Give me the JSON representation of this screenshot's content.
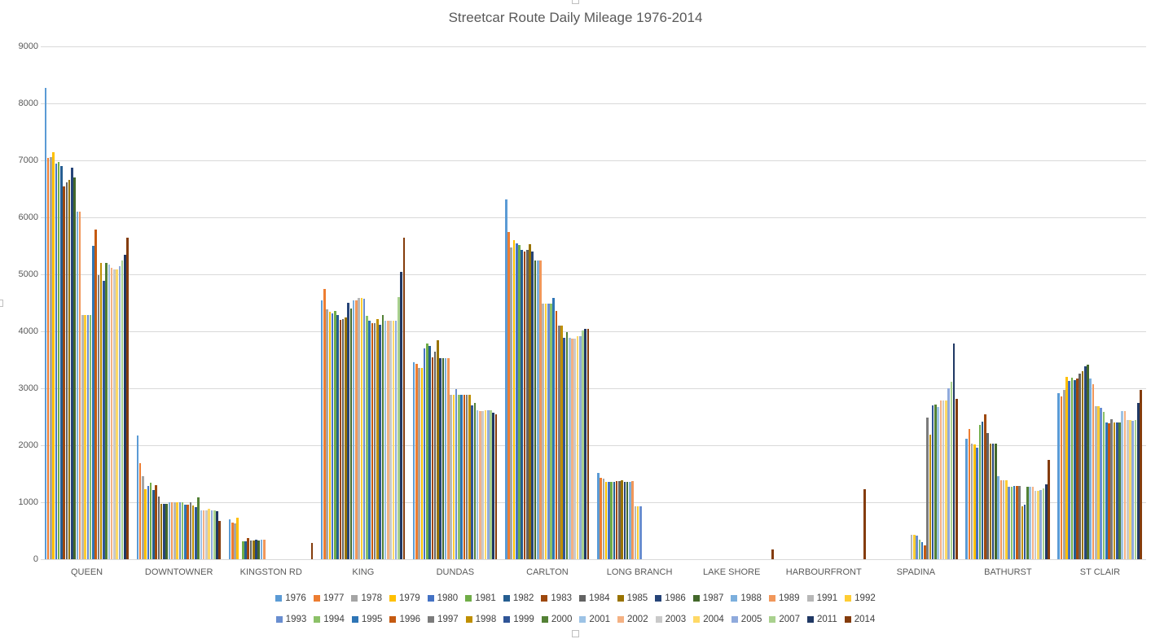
{
  "chart_data": {
    "type": "bar",
    "title": "Streetcar Route Daily Mileage 1976-2014",
    "categories": [
      "QUEEN",
      "DOWNTOWNER",
      "KINGSTON RD",
      "KING",
      "DUNDAS",
      "CARLTON",
      "LONG BRANCH",
      "LAKE SHORE",
      "HARBOURFRONT",
      "SPADINA",
      "BATHURST",
      "ST CLAIR"
    ],
    "ylabel": "",
    "xlabel": "",
    "ylim": [
      0,
      9000
    ],
    "y_axis": {
      "min": 0,
      "max": 9000,
      "step": 1000,
      "ticks": [
        0,
        1000,
        2000,
        3000,
        4000,
        5000,
        6000,
        7000,
        8000,
        9000
      ]
    },
    "grid": "horizontal",
    "legend": {
      "position": "bottom",
      "rows": 2
    },
    "series": [
      {
        "name": "1976",
        "color": "#5B9BD5",
        "values": [
          8270,
          2170,
          695,
          4550,
          3460,
          6320,
          1520,
          0,
          0,
          0,
          2120,
          2920
        ]
      },
      {
        "name": "1977",
        "color": "#ED7D31",
        "values": [
          7050,
          1680,
          650,
          4740,
          3430,
          5750,
          1430,
          0,
          0,
          0,
          2290,
          2860
        ]
      },
      {
        "name": "1978",
        "color": "#A5A5A5",
        "values": [
          7060,
          1460,
          633,
          4390,
          3360,
          5470,
          1410,
          0,
          0,
          0,
          2030,
          2970
        ]
      },
      {
        "name": "1979",
        "color": "#FFC000",
        "values": [
          7150,
          1230,
          729,
          4350,
          3360,
          5600,
          1360,
          0,
          0,
          0,
          2010,
          3205
        ]
      },
      {
        "name": "1980",
        "color": "#4472C4",
        "values": [
          6940,
          1280,
          0,
          4320,
          3695,
          5550,
          1360,
          0,
          0,
          0,
          1960,
          3125
        ]
      },
      {
        "name": "1981",
        "color": "#70AD47",
        "values": [
          6970,
          1350,
          315,
          4360,
          3790,
          5520,
          1360,
          0,
          0,
          0,
          2360,
          3185
        ]
      },
      {
        "name": "1982",
        "color": "#255E91",
        "values": [
          6900,
          1220,
          315,
          4290,
          3740,
          5430,
          1360,
          0,
          0,
          0,
          2420,
          3150
        ]
      },
      {
        "name": "1983",
        "color": "#9E480E",
        "values": [
          6550,
          1300,
          376,
          4200,
          3550,
          5400,
          1370,
          0,
          0,
          0,
          2540,
          3170
        ]
      },
      {
        "name": "1984",
        "color": "#636363",
        "values": [
          6620,
          1100,
          330,
          4220,
          3650,
          5430,
          1370,
          0,
          0,
          0,
          2220,
          3265
        ]
      },
      {
        "name": "1985",
        "color": "#997300",
        "values": [
          6660,
          975,
          335,
          4250,
          3840,
          5530,
          1380,
          0,
          0,
          0,
          2030,
          3300
        ]
      },
      {
        "name": "1986",
        "color": "#264478",
        "values": [
          6870,
          975,
          340,
          4500,
          3530,
          5400,
          1365,
          0,
          0,
          0,
          2030,
          3385
        ]
      },
      {
        "name": "1987",
        "color": "#43682B",
        "values": [
          6700,
          975,
          335,
          4400,
          3530,
          5250,
          1360,
          0,
          0,
          0,
          2030,
          3410
        ]
      },
      {
        "name": "1988",
        "color": "#7CAFDD",
        "values": [
          6100,
          995,
          345,
          4550,
          3530,
          5250,
          1365,
          0,
          0,
          0,
          1460,
          3170
        ]
      },
      {
        "name": "1989",
        "color": "#F1975A",
        "values": [
          6100,
          995,
          345,
          4540,
          3530,
          5250,
          1370,
          0,
          0,
          0,
          1390,
          3070
        ]
      },
      {
        "name": "1991",
        "color": "#B7B7B7",
        "values": [
          4290,
          995,
          0,
          4590,
          2890,
          4480,
          935,
          0,
          0,
          435,
          1390,
          2680
        ]
      },
      {
        "name": "1992",
        "color": "#FFCD33",
        "values": [
          4290,
          995,
          0,
          4590,
          2890,
          4480,
          935,
          0,
          0,
          435,
          1380,
          2680
        ]
      },
      {
        "name": "1993",
        "color": "#698ED0",
        "values": [
          4290,
          995,
          0,
          4570,
          2980,
          4480,
          935,
          0,
          0,
          420,
          1270,
          2660
        ]
      },
      {
        "name": "1994",
        "color": "#8CC168",
        "values": [
          4290,
          1000,
          0,
          4270,
          2890,
          4480,
          0,
          0,
          0,
          340,
          1270,
          2585
        ]
      },
      {
        "name": "1995",
        "color": "#2E75B6",
        "values": [
          5500,
          960,
          0,
          4190,
          2890,
          4590,
          0,
          0,
          0,
          300,
          1290,
          2395
        ]
      },
      {
        "name": "1996",
        "color": "#C55A11",
        "values": [
          5780,
          960,
          0,
          4150,
          2890,
          4360,
          0,
          0,
          0,
          250,
          1290,
          2385
        ]
      },
      {
        "name": "1997",
        "color": "#7B7B7B",
        "values": [
          4980,
          1000,
          0,
          4150,
          2890,
          4100,
          0,
          0,
          0,
          2480,
          1290,
          2455
        ]
      },
      {
        "name": "1998",
        "color": "#BF8F00",
        "values": [
          5195,
          940,
          0,
          4220,
          2890,
          4100,
          0,
          0,
          0,
          2180,
          935,
          2395
        ]
      },
      {
        "name": "1999",
        "color": "#2F5597",
        "values": [
          4890,
          920,
          0,
          4120,
          2700,
          3890,
          0,
          0,
          0,
          2695,
          955,
          2395
        ]
      },
      {
        "name": "2000",
        "color": "#538135",
        "values": [
          5205,
          1090,
          0,
          4280,
          2740,
          3980,
          0,
          0,
          0,
          2710,
          1270,
          2395
        ]
      },
      {
        "name": "2001",
        "color": "#9DC3E6",
        "values": [
          5170,
          860,
          0,
          4190,
          2620,
          3890,
          0,
          0,
          0,
          2670,
          1270,
          2600
        ]
      },
      {
        "name": "2002",
        "color": "#F4B183",
        "values": [
          5110,
          860,
          0,
          4190,
          2600,
          3870,
          0,
          0,
          0,
          2790,
          1270,
          2600
        ]
      },
      {
        "name": "2003",
        "color": "#C9C9C9",
        "values": [
          5090,
          860,
          0,
          4190,
          2600,
          3870,
          0,
          0,
          0,
          2780,
          1195,
          2445
        ]
      },
      {
        "name": "2004",
        "color": "#FFD966",
        "values": [
          5090,
          890,
          0,
          4190,
          2620,
          3910,
          0,
          0,
          0,
          2780,
          1195,
          2445
        ]
      },
      {
        "name": "2005",
        "color": "#8FAADC",
        "values": [
          5150,
          860,
          0,
          4190,
          2620,
          3910,
          0,
          0,
          0,
          3000,
          1220,
          2425
        ]
      },
      {
        "name": "2007",
        "color": "#A9D18E",
        "values": [
          5250,
          855,
          0,
          4600,
          2620,
          4010,
          0,
          0,
          0,
          3110,
          1245,
          2445
        ]
      },
      {
        "name": "2011",
        "color": "#203864",
        "values": [
          5350,
          840,
          0,
          5040,
          2570,
          4040,
          0,
          0,
          0,
          3790,
          1315,
          2745
        ]
      },
      {
        "name": "2014",
        "color": "#843C0C",
        "values": [
          5650,
          670,
          290,
          5650,
          2550,
          4040,
          0,
          170,
          1230,
          2810,
          1740,
          2970
        ]
      }
    ]
  }
}
